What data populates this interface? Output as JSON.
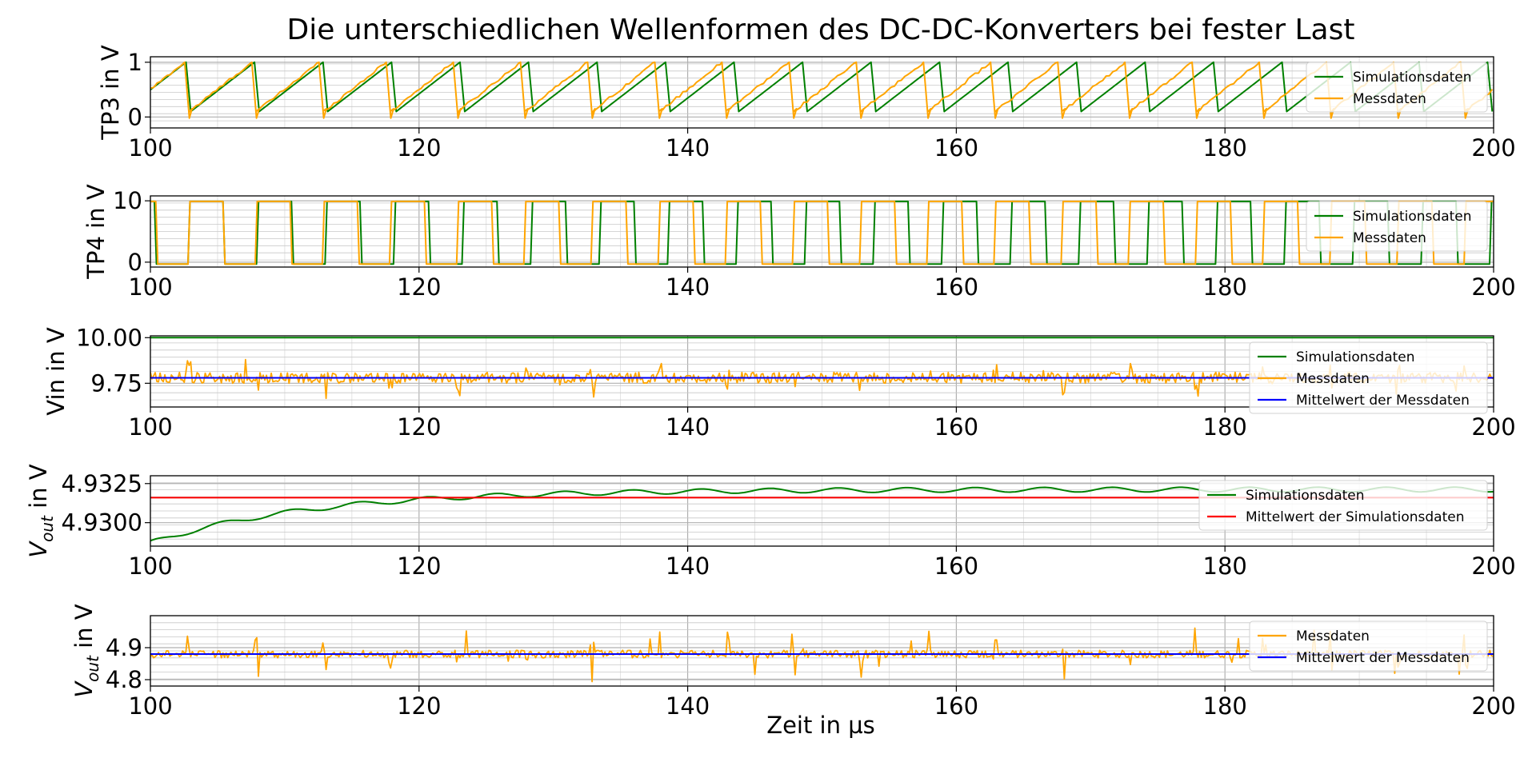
{
  "chart_data": {
    "title": "Die unterschiedlichen Wellenformen des DC-DC-Konverters bei fester Last",
    "xlabel": "Zeit in µs",
    "colors": {
      "sim": "#008000",
      "mess": "#ffa500",
      "mean_mess": "#0000ff",
      "mean_sim": "#ff0000"
    },
    "subplots": [
      {
        "id": "tp3",
        "type": "line",
        "ylabel": "TP3 in V",
        "xlim": [
          100,
          200
        ],
        "ylim": [
          -0.2,
          1.1
        ],
        "yticks": [
          0,
          1
        ],
        "ytick_labels": [
          "0",
          "1"
        ],
        "xticks": [
          100,
          120,
          140,
          160,
          180,
          200
        ],
        "grid": true,
        "legend_loc": "right",
        "waveform": {
          "kind": "sawtooth",
          "period": 5.1,
          "sim_start": 97.9,
          "mess_start": 97.9,
          "mess_period": 5.0,
          "low": 0.1,
          "high": 1.0,
          "x_min": 100,
          "x_max": 200
        },
        "series": [
          {
            "name": "Simulationsdaten",
            "color": "sim"
          },
          {
            "name": "Messdaten",
            "color": "mess"
          }
        ]
      },
      {
        "id": "tp4",
        "type": "line",
        "ylabel": "TP4 in V",
        "xlim": [
          100,
          200
        ],
        "ylim": [
          -0.8,
          10.8
        ],
        "yticks": [
          0,
          10
        ],
        "ytick_labels": [
          "0",
          "10"
        ],
        "xticks": [
          100,
          120,
          140,
          160,
          180,
          200
        ],
        "grid": true,
        "legend_loc": "right",
        "waveform": {
          "kind": "square",
          "sim_period": 5.1,
          "mess_period": 5.0,
          "sim_rise": 102.8,
          "mess_rise": 102.8,
          "on_time": 2.6,
          "low": -0.3,
          "high": 9.9,
          "x_min": 100,
          "x_max": 200
        },
        "series": [
          {
            "name": "Simulationsdaten",
            "color": "sim"
          },
          {
            "name": "Messdaten",
            "color": "mess"
          }
        ]
      },
      {
        "id": "vin",
        "type": "line",
        "ylabel": "Vin in V",
        "xlim": [
          100,
          200
        ],
        "ylim": [
          9.62,
          10.01
        ],
        "yticks": [
          9.75,
          10.0
        ],
        "ytick_labels": [
          "9.75",
          "10.00"
        ],
        "xticks": [
          100,
          120,
          140,
          160,
          180,
          200
        ],
        "grid": true,
        "legend_loc": "right",
        "waveform": {
          "kind": "noise",
          "sim_value": 10.0,
          "mess_mean": 9.78,
          "noise_amp": 0.03,
          "spike_amp": 0.09,
          "x_min": 100,
          "x_max": 200
        },
        "series": [
          {
            "name": "Simulationsdaten",
            "color": "sim"
          },
          {
            "name": "Messdaten",
            "color": "mess"
          },
          {
            "name": "Mittelwert der Messdaten",
            "color": "mean_mess",
            "value": 9.78
          }
        ]
      },
      {
        "id": "vout_sim",
        "type": "line",
        "ylabel": "V",
        "ylabel_sub": "out",
        "ylabel_suffix": " in V",
        "xlim": [
          100,
          200
        ],
        "ylim": [
          4.9285,
          4.933
        ],
        "yticks": [
          4.93,
          4.9325
        ],
        "ytick_labels": [
          "4.9300",
          "4.9325"
        ],
        "xticks": [
          100,
          120,
          140,
          160,
          180,
          200
        ],
        "grid": true,
        "legend_loc": "right",
        "waveform": {
          "kind": "settling",
          "y0": 4.9287,
          "y_final": 4.93212,
          "tau": 12.0,
          "ripple_amp": 0.00015,
          "ripple_period": 5.1,
          "x_min": 100,
          "x_max": 200
        },
        "series": [
          {
            "name": "Simulationsdaten",
            "color": "sim"
          },
          {
            "name": "Mittelwert der Simulationsdaten",
            "color": "mean_sim",
            "value": 4.9316
          }
        ]
      },
      {
        "id": "vout_mess",
        "type": "line",
        "ylabel": "V",
        "ylabel_sub": "out",
        "ylabel_suffix": " in V",
        "xlim": [
          100,
          200
        ],
        "ylim": [
          4.78,
          5.0
        ],
        "yticks": [
          4.8,
          4.9
        ],
        "ytick_labels": [
          "4.8",
          "4.9"
        ],
        "xticks": [
          100,
          120,
          140,
          160,
          180,
          200
        ],
        "grid": true,
        "legend_loc": "right",
        "waveform": {
          "kind": "noise_spikes",
          "mess_mean": 4.88,
          "noise_amp": 0.012,
          "spike_amp": 0.07,
          "spike_period": 5.0,
          "x_min": 100,
          "x_max": 200
        },
        "series": [
          {
            "name": "Messdaten",
            "color": "mess"
          },
          {
            "name": "Mittelwert der Messdaten",
            "color": "mean_mess",
            "value": 4.88
          }
        ]
      }
    ]
  }
}
